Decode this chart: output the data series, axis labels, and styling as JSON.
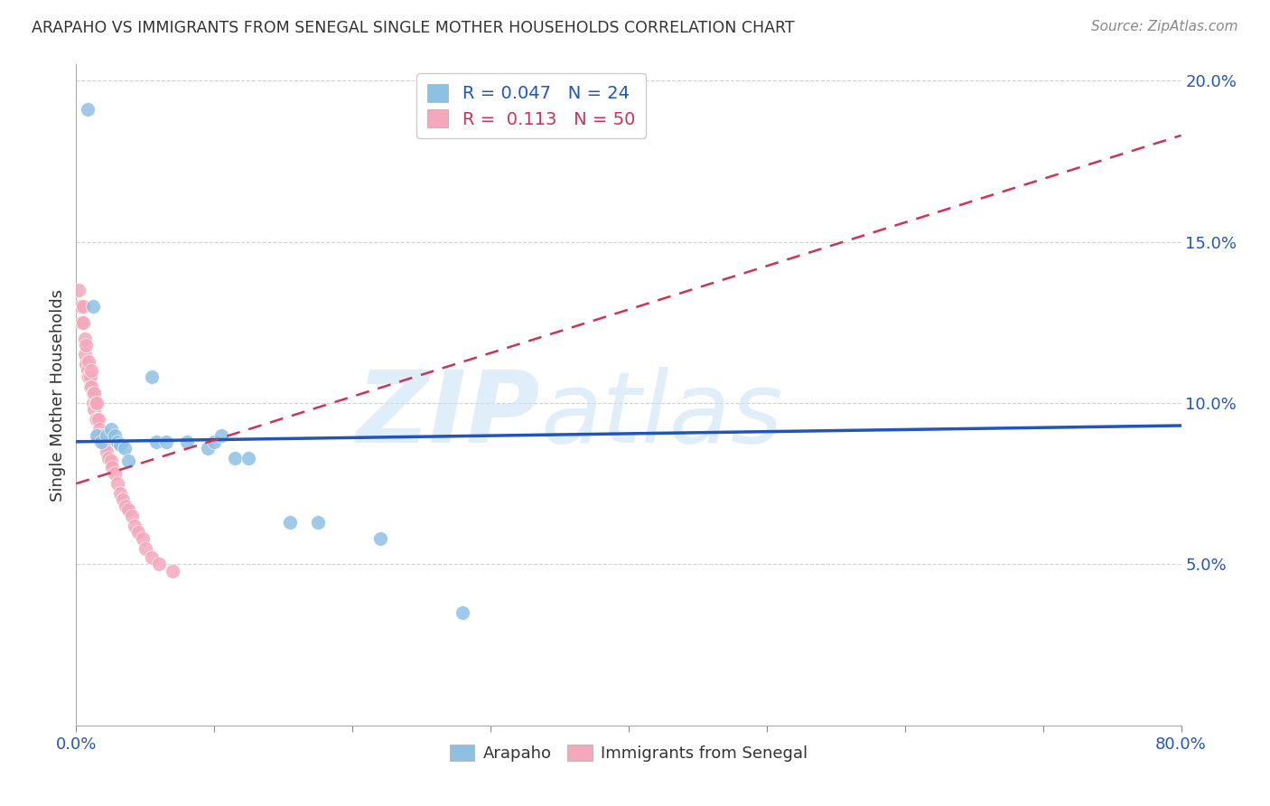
{
  "title": "ARAPAHO VS IMMIGRANTS FROM SENEGAL SINGLE MOTHER HOUSEHOLDS CORRELATION CHART",
  "source": "Source: ZipAtlas.com",
  "ylabel": "Single Mother Households",
  "xlim": [
    0,
    0.8
  ],
  "ylim": [
    0,
    0.205
  ],
  "arapaho_color": "#8ec0e4",
  "senegal_color": "#f5a8bc",
  "arapaho_line_color": "#2255bb",
  "senegal_line_color": "#cc3355",
  "legend_R_arapaho": "R = 0.047",
  "legend_N_arapaho": "N = 24",
  "legend_R_senegal": "R =  0.113",
  "legend_N_senegal": "N = 50",
  "arapaho_points_x": [
    0.008,
    0.012,
    0.015,
    0.018,
    0.022,
    0.025,
    0.028,
    0.03,
    0.032,
    0.035,
    0.038,
    0.055,
    0.058,
    0.065,
    0.08,
    0.095,
    0.1,
    0.105,
    0.115,
    0.125,
    0.155,
    0.175,
    0.22,
    0.28
  ],
  "arapaho_points_y": [
    0.191,
    0.13,
    0.09,
    0.088,
    0.09,
    0.092,
    0.09,
    0.088,
    0.087,
    0.086,
    0.082,
    0.108,
    0.088,
    0.088,
    0.088,
    0.086,
    0.088,
    0.09,
    0.083,
    0.083,
    0.063,
    0.063,
    0.058,
    0.035
  ],
  "senegal_points_x": [
    0.002,
    0.003,
    0.004,
    0.005,
    0.005,
    0.006,
    0.006,
    0.007,
    0.007,
    0.008,
    0.008,
    0.009,
    0.009,
    0.01,
    0.01,
    0.011,
    0.011,
    0.012,
    0.012,
    0.013,
    0.013,
    0.014,
    0.014,
    0.015,
    0.015,
    0.016,
    0.016,
    0.017,
    0.018,
    0.019,
    0.02,
    0.021,
    0.022,
    0.023,
    0.025,
    0.026,
    0.028,
    0.03,
    0.032,
    0.034,
    0.036,
    0.038,
    0.04,
    0.042,
    0.045,
    0.048,
    0.05,
    0.055,
    0.06,
    0.07
  ],
  "senegal_points_y": [
    0.135,
    0.13,
    0.125,
    0.13,
    0.125,
    0.12,
    0.115,
    0.118,
    0.112,
    0.11,
    0.108,
    0.113,
    0.108,
    0.108,
    0.105,
    0.11,
    0.105,
    0.103,
    0.1,
    0.103,
    0.098,
    0.1,
    0.095,
    0.1,
    0.095,
    0.095,
    0.09,
    0.092,
    0.09,
    0.09,
    0.088,
    0.087,
    0.085,
    0.083,
    0.082,
    0.08,
    0.078,
    0.075,
    0.072,
    0.07,
    0.068,
    0.067,
    0.065,
    0.062,
    0.06,
    0.058,
    0.055,
    0.052,
    0.05,
    0.048
  ],
  "arapaho_line_x": [
    0.0,
    0.8
  ],
  "arapaho_line_y": [
    0.088,
    0.093
  ],
  "senegal_line_x": [
    0.0,
    0.8
  ],
  "senegal_line_y": [
    0.075,
    0.183
  ]
}
